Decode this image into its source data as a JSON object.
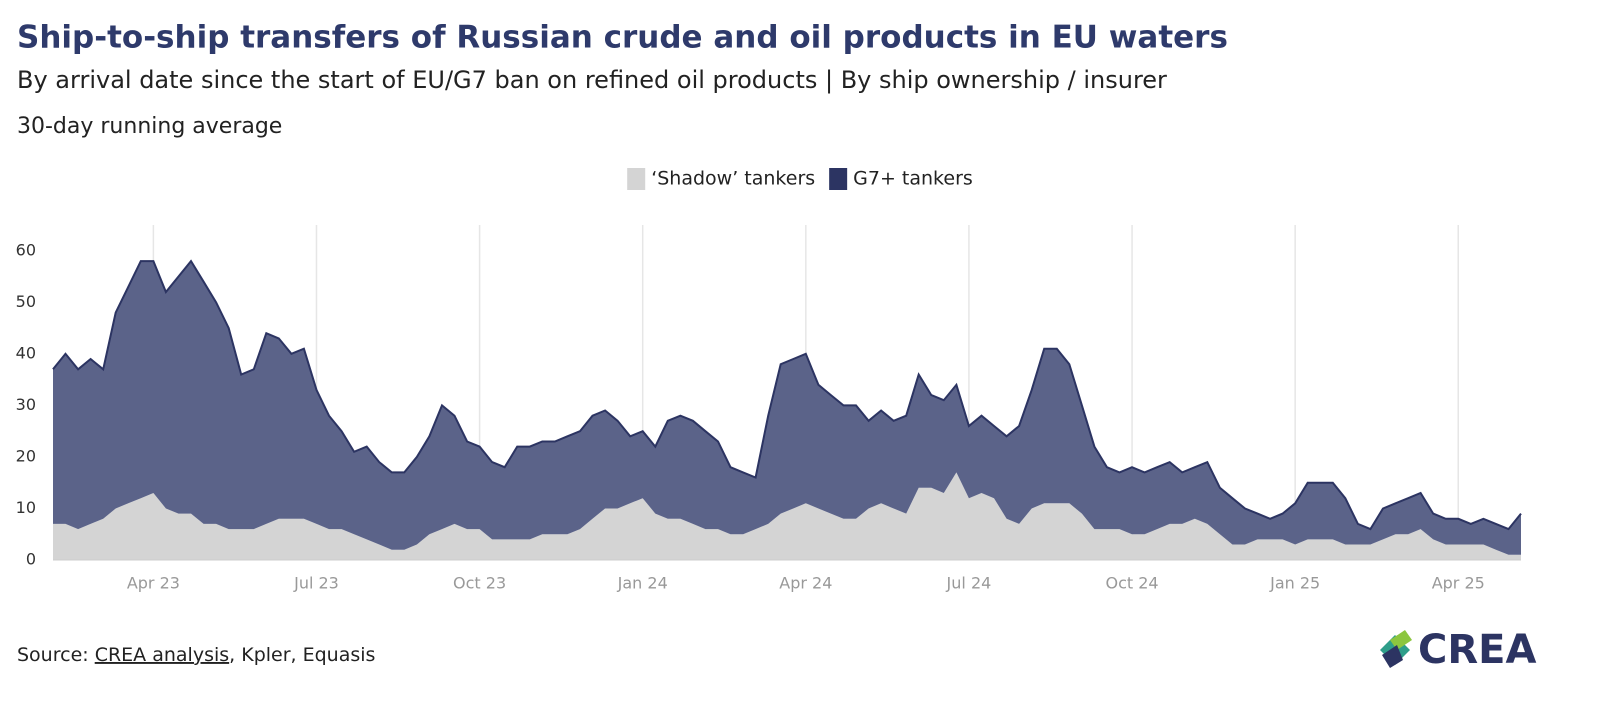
{
  "chart_data": {
    "type": "stacked_area",
    "title": "Ship-to-ship transfers of Russian crude and oil products in EU waters",
    "subtitle": "By arrival date since the start of EU/G7 ban on refined oil products | By ship ownership / insurer",
    "note": "30-day running average",
    "source": {
      "prefix": "Source: ",
      "link": "CREA analysis",
      "rest": ", Kpler, Equasis"
    },
    "logo": "CREA",
    "categories": [
      null,
      null,
      null,
      null,
      null,
      null,
      null,
      null,
      "Apr 23",
      null,
      null,
      null,
      null,
      null,
      null,
      null,
      null,
      null,
      null,
      null,
      null,
      "Jul 23",
      null,
      null,
      null,
      null,
      null,
      null,
      null,
      null,
      null,
      null,
      null,
      null,
      "Oct 23",
      null,
      null,
      null,
      null,
      null,
      null,
      null,
      null,
      null,
      null,
      null,
      null,
      "Jan 24",
      null,
      null,
      null,
      null,
      null,
      null,
      null,
      null,
      null,
      null,
      null,
      null,
      "Apr 24",
      null,
      null,
      null,
      null,
      null,
      null,
      null,
      null,
      null,
      null,
      null,
      null,
      "Jul 24",
      null,
      null,
      null,
      null,
      null,
      null,
      null,
      null,
      null,
      null,
      null,
      null,
      "Oct 24",
      null,
      null,
      null,
      null,
      null,
      null,
      null,
      null,
      null,
      null,
      null,
      null,
      "Jan 25",
      null,
      null,
      null,
      null,
      null,
      null,
      null,
      null,
      null,
      null,
      null,
      null,
      "Apr 25",
      null,
      null,
      null,
      null,
      null
    ],
    "series": [
      {
        "name": "‘Shadow’ tankers",
        "color": "#d4d4d4",
        "values": [
          7,
          7,
          6,
          7,
          8,
          10,
          11,
          12,
          13,
          10,
          9,
          9,
          7,
          7,
          6,
          6,
          6,
          7,
          8,
          8,
          8,
          7,
          6,
          6,
          5,
          4,
          3,
          2,
          2,
          3,
          5,
          6,
          7,
          6,
          6,
          4,
          4,
          4,
          4,
          5,
          5,
          5,
          6,
          8,
          10,
          10,
          11,
          12,
          9,
          8,
          8,
          7,
          6,
          6,
          5,
          5,
          6,
          7,
          9,
          10,
          11,
          10,
          9,
          8,
          8,
          10,
          11,
          10,
          9,
          14,
          14,
          13,
          17,
          12,
          13,
          12,
          8,
          7,
          10,
          11,
          11,
          11,
          9,
          6,
          6,
          6,
          5,
          5,
          6,
          7,
          7,
          8,
          7,
          5,
          3,
          3,
          4,
          4,
          4,
          3,
          4,
          4,
          4,
          3,
          3,
          3,
          4,
          5,
          5,
          6,
          4,
          3,
          3,
          3,
          3,
          2,
          1,
          1
        ]
      },
      {
        "name": "G7+ tankers",
        "color": "#5b6389",
        "values": [
          30,
          33,
          31,
          32,
          29,
          38,
          42,
          46,
          45,
          42,
          46,
          49,
          47,
          43,
          39,
          30,
          31,
          37,
          35,
          32,
          33,
          26,
          22,
          19,
          16,
          18,
          16,
          15,
          15,
          17,
          19,
          24,
          21,
          17,
          16,
          15,
          14,
          18,
          18,
          18,
          18,
          19,
          19,
          20,
          19,
          17,
          13,
          13,
          13,
          19,
          20,
          20,
          19,
          17,
          13,
          12,
          10,
          21,
          29,
          29,
          29,
          24,
          23,
          22,
          22,
          17,
          18,
          17,
          19,
          22,
          18,
          18,
          17,
          14,
          15,
          14,
          16,
          19,
          23,
          30,
          30,
          27,
          21,
          16,
          12,
          11,
          13,
          12,
          12,
          12,
          10,
          10,
          12,
          9,
          9,
          7,
          5,
          4,
          5,
          8,
          11,
          11,
          11,
          9,
          4,
          3,
          6,
          6,
          7,
          7,
          5,
          5,
          5,
          4,
          5,
          5,
          5,
          8
        ]
      }
    ],
    "line_color": "#2c3462",
    "ylim": [
      0,
      65
    ],
    "yticks": [
      0,
      10,
      20,
      30,
      40,
      50,
      60
    ],
    "x_grid": true,
    "legend": "top"
  }
}
